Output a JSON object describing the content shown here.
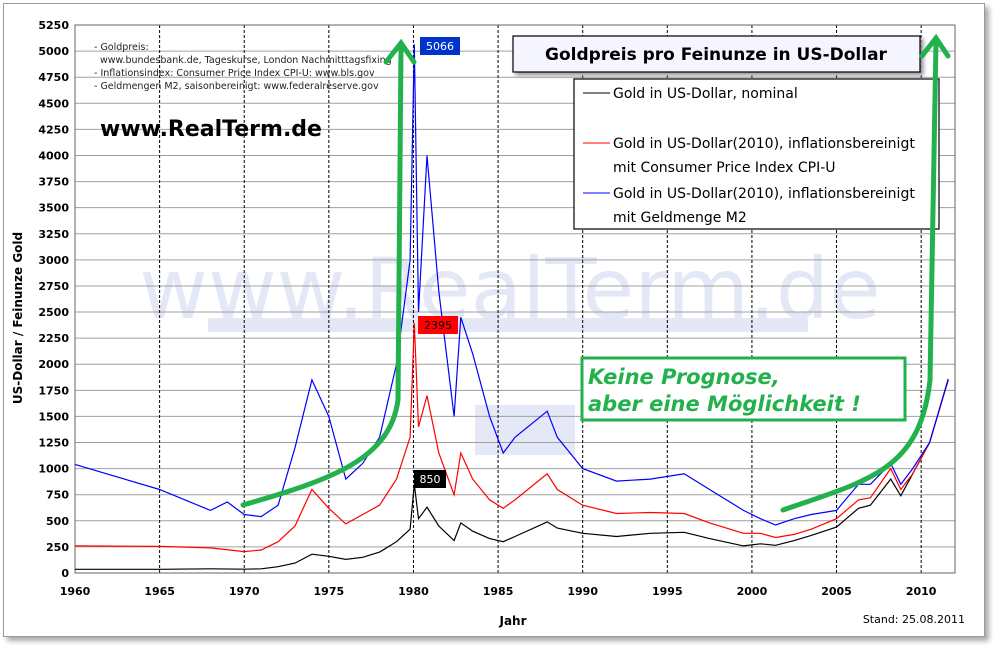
{
  "chart_data": {
    "type": "line",
    "title": "Goldpreis pro Feinunze in US-Dollar",
    "xlabel": "Jahr",
    "ylabel": "US-Dollar / Feinunze Gold",
    "xlim": [
      1960,
      2012
    ],
    "ylim": [
      0,
      5250
    ],
    "xticks": [
      1960,
      1965,
      1970,
      1975,
      1980,
      1985,
      1990,
      1995,
      2000,
      2005,
      2010
    ],
    "yticks": [
      0,
      250,
      500,
      750,
      1000,
      1250,
      1500,
      1750,
      2000,
      2250,
      2500,
      2750,
      3000,
      3250,
      3500,
      3750,
      4000,
      4250,
      4500,
      4750,
      5000,
      5250
    ],
    "grid": true,
    "legend_position": "top-right",
    "series": [
      {
        "name": "Gold in US-Dollar, nominal",
        "color": "#000000",
        "x": [
          1960,
          1965,
          1968,
          1970,
          1971,
          1972,
          1973,
          1974,
          1975,
          1976,
          1977,
          1978,
          1979,
          1979.8,
          1980.05,
          1980.3,
          1980.8,
          1981.5,
          1982.4,
          1982.8,
          1983.5,
          1984.5,
          1985.3,
          1986,
          1987.9,
          1988.5,
          1990,
          1992,
          1994,
          1996,
          1997.5,
          1999.5,
          2000.5,
          2001.4,
          2002.5,
          2003.5,
          2005,
          2006.3,
          2007,
          2008.2,
          2008.8,
          2009.5,
          2010.5,
          2011.6
        ],
        "y": [
          35,
          35,
          40,
          36,
          40,
          60,
          95,
          180,
          160,
          130,
          150,
          200,
          300,
          420,
          850,
          520,
          630,
          450,
          310,
          480,
          400,
          330,
          300,
          350,
          490,
          430,
          380,
          350,
          380,
          390,
          330,
          260,
          280,
          265,
          310,
          360,
          440,
          620,
          650,
          900,
          740,
          950,
          1250,
          1850
        ]
      },
      {
        "name": "Gold in US-Dollar(2010), inflationsbereinigt mit Consumer Price Index CPI-U",
        "color": "#ff0000",
        "x": [
          1960,
          1965,
          1968,
          1970,
          1971,
          1972,
          1973,
          1974,
          1975,
          1976,
          1977,
          1978,
          1979,
          1979.8,
          1980.05,
          1980.3,
          1980.8,
          1981.5,
          1982.4,
          1982.8,
          1983.5,
          1984.5,
          1985.3,
          1986,
          1987.9,
          1988.5,
          1990,
          1992,
          1994,
          1996,
          1997.5,
          1999.5,
          2000.5,
          2001.4,
          2002.5,
          2003.5,
          2005,
          2006.3,
          2007,
          2008.2,
          2008.8,
          2009.5,
          2010.5,
          2011.6
        ],
        "y": [
          260,
          255,
          240,
          205,
          220,
          300,
          450,
          800,
          620,
          470,
          560,
          650,
          900,
          1300,
          2395,
          1400,
          1700,
          1150,
          750,
          1150,
          900,
          700,
          620,
          700,
          950,
          800,
          650,
          570,
          580,
          570,
          480,
          380,
          380,
          340,
          370,
          420,
          520,
          700,
          720,
          1000,
          800,
          950,
          1250,
          1850
        ]
      },
      {
        "name": "Gold in US-Dollar(2010), inflationsbereinigt mit Geldmenge M2",
        "color": "#0000ff",
        "x": [
          1960,
          1965,
          1968,
          1969,
          1970,
          1971,
          1972,
          1973,
          1974,
          1975,
          1976,
          1977,
          1978,
          1979,
          1979.8,
          1980.05,
          1980.3,
          1980.8,
          1981.5,
          1982.4,
          1982.8,
          1983.5,
          1984.5,
          1985.3,
          1986,
          1987.9,
          1988.5,
          1990,
          1992,
          1994,
          1996,
          1997.5,
          1999.5,
          2000.5,
          2001.4,
          2002.5,
          2003.5,
          2005,
          2006.3,
          2007,
          2008.2,
          2008.8,
          2009.5,
          2010.5,
          2011.6
        ],
        "y": [
          1040,
          800,
          600,
          680,
          560,
          540,
          650,
          1200,
          1850,
          1500,
          900,
          1050,
          1300,
          2000,
          3000,
          5066,
          2500,
          4000,
          2700,
          1500,
          2450,
          2100,
          1500,
          1150,
          1300,
          1550,
          1300,
          1000,
          880,
          900,
          950,
          800,
          600,
          520,
          460,
          520,
          560,
          600,
          850,
          850,
          1050,
          850,
          1000,
          1250,
          1860
        ]
      }
    ],
    "data_labels": [
      {
        "text": "5066",
        "x": 1980.05,
        "y": 5066,
        "color": "#0033cc"
      },
      {
        "text": "2395",
        "x": 1980.05,
        "y": 2395,
        "color": "#ff0000"
      },
      {
        "text": "850",
        "x": 1980.05,
        "y": 850,
        "color": "#000000"
      }
    ],
    "sources": [
      "- Goldpreis:",
      "www.bundesbank.de, Tageskurse, London Nachmitttagsfixing",
      "- Inflationsindex: Consumer Price Index CPI-U: www.bls.gov",
      "- Geldmengen M2, saisonbereinigt: www.federalreserve.gov"
    ],
    "website": "www.RealTerm.de",
    "watermark": "www.RealTerm.de",
    "annotation": [
      "Keine Prognose,",
      "aber eine Möglichkeit !"
    ],
    "annotation_color": "#22b14c",
    "stand": "Stand: 25.08.2011"
  }
}
